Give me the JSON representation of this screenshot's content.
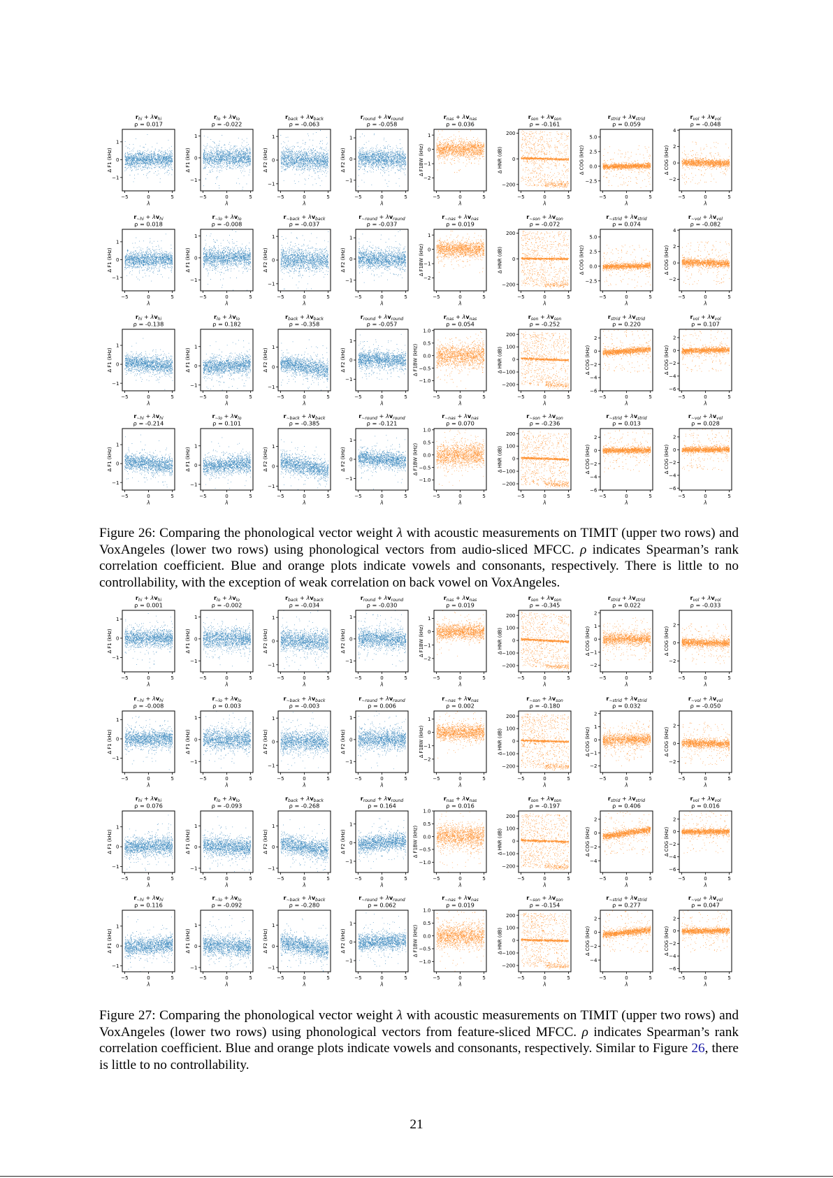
{
  "features": [
    "hi",
    "lo",
    "back",
    "round",
    "nas",
    "son",
    "strid",
    "vol"
  ],
  "colors": {
    "vowel": "#1f77b4",
    "consonant": "#ff7f0e"
  },
  "title_parts": {
    "r": "r",
    "plus": " + ",
    "lambda": "λ",
    "v": "v",
    "rho_prefix": "ρ = "
  },
  "xaxis": {
    "label": "λ",
    "ticks": [
      "−5",
      "0",
      "5"
    ],
    "range": [
      -5.5,
      5.5
    ]
  },
  "figures": [
    {
      "axes": {
        "timit": [
          {
            "ylabel": "Δ F1 (kHz)",
            "yticks": [
              "−1",
              "0",
              "1"
            ],
            "ylim": [
              -1.75,
              1.7
            ]
          },
          {
            "ylabel": "Δ F1 (kHz)",
            "yticks": [
              "−1",
              "0",
              "1"
            ],
            "ylim": [
              -1.5,
              1.3
            ]
          },
          {
            "ylabel": "Δ F2 (kHz)",
            "yticks": [
              "−1",
              "0",
              "1"
            ],
            "ylim": [
              -1.3,
              1.3
            ]
          },
          {
            "ylabel": "Δ F2 (kHz)",
            "yticks": [
              "−1",
              "0",
              "1"
            ],
            "ylim": [
              -1.5,
              1.4
            ]
          },
          {
            "ylabel": "Δ F1BW (kHz)",
            "yticks": [
              "−2",
              "−1",
              "0",
              "1"
            ],
            "ylim": [
              -2.9,
              1.4
            ]
          },
          {
            "ylabel": "Δ HNR (dB)",
            "yticks": [
              "−200",
              "0",
              "200"
            ],
            "ylim": [
              -250,
              230
            ]
          },
          {
            "ylabel": "Δ COG (kHz)",
            "yticks": [
              "−2.5",
              "0.0",
              "2.5",
              "5.0"
            ],
            "ylim": [
              -4.2,
              6.3
            ]
          },
          {
            "ylabel": "Δ COG (kHz)",
            "yticks": [
              "−2",
              "0",
              "2",
              "4"
            ],
            "ylim": [
              -3.4,
              4.1
            ]
          }
        ],
        "vox": [
          {
            "ylabel": "Δ F1 (kHz)",
            "yticks": [
              "−1",
              "0",
              "1"
            ],
            "ylim": [
              -1.4,
              1.85
            ]
          },
          {
            "ylabel": "Δ F1 (kHz)",
            "yticks": [
              "−1",
              "0",
              "1"
            ],
            "ylim": [
              -1.3,
              1.9
            ]
          },
          {
            "ylabel": "Δ F2 (kHz)",
            "yticks": [
              "−1",
              "0",
              "1"
            ],
            "ylim": [
              -1.2,
              1.9
            ]
          },
          {
            "ylabel": "Δ F2 (kHz)",
            "yticks": [
              "−1",
              "0",
              "1"
            ],
            "ylim": [
              -1.6,
              1.6
            ]
          },
          {
            "ylabel": "Δ F1BW (kHz)",
            "yticks": [
              "−1.0",
              "−0.5",
              "0.0",
              "0.5",
              "1.0"
            ],
            "ylim": [
              -1.4,
              1.05
            ]
          },
          {
            "ylabel": "Δ HNR (dB)",
            "yticks": [
              "−200",
              "−100",
              "0",
              "100",
              "200"
            ],
            "ylim": [
              -250,
              240
            ]
          },
          {
            "ylabel": "Δ COG (kHz)",
            "yticks": [
              "−6",
              "−4",
              "−2",
              "0",
              "2"
            ],
            "ylim": [
              -6,
              3.3
            ]
          },
          {
            "ylabel": "Δ COG (kHz)",
            "yticks": [
              "−6",
              "−4",
              "−2",
              "0",
              "2"
            ],
            "ylim": [
              -6.3,
              3.3
            ]
          }
        ]
      },
      "rows": [
        {
          "dataset": "timit",
          "negated_prefix": "",
          "rho": [
            "0.017",
            "-0.022",
            "-0.063",
            "-0.058",
            "0.036",
            "-0.161",
            "0.059",
            "-0.048"
          ]
        },
        {
          "dataset": "timit",
          "negated_prefix": "∼",
          "rho": [
            "0.018",
            "-0.008",
            "-0.037",
            "-0.037",
            "0.019",
            "-0.072",
            "0.074",
            "-0.082"
          ]
        },
        {
          "dataset": "vox",
          "negated_prefix": "",
          "rho": [
            "-0.138",
            "0.182",
            "-0.358",
            "-0.057",
            "0.054",
            "-0.252",
            "0.220",
            "0.107"
          ]
        },
        {
          "dataset": "vox",
          "negated_prefix": "∼",
          "rho": [
            "-0.214",
            "0.101",
            "-0.385",
            "-0.121",
            "0.070",
            "-0.236",
            "0.013",
            "0.028"
          ]
        }
      ],
      "caption": {
        "label": "Figure 26:",
        "parts": [
          "Comparing the phonological vector weight ",
          "λ",
          " with acoustic measurements on TIMIT (upper two rows) and VoxAngeles (lower two rows) using phonological vectors from audio-sliced MFCC. ",
          "ρ",
          " indicates Spearman’s rank correlation coefficient. Blue and orange plots indicate vowels and consonants, respectively. There is little to no controllability, with the exception of weak correlation on back vowel on VoxAngeles.",
          "",
          ""
        ]
      }
    },
    {
      "axes": {
        "timit": [
          {
            "ylabel": "Δ F1 (kHz)",
            "yticks": [
              "−1",
              "0",
              "1"
            ],
            "ylim": [
              -1.75,
              1.45
            ]
          },
          {
            "ylabel": "Δ F1 (kHz)",
            "yticks": [
              "−1",
              "0",
              "1"
            ],
            "ylim": [
              -1.5,
              1.3
            ]
          },
          {
            "ylabel": "Δ F2 (kHz)",
            "yticks": [
              "−1",
              "0",
              "1"
            ],
            "ylim": [
              -1.3,
              1.3
            ]
          },
          {
            "ylabel": "Δ F2 (kHz)",
            "yticks": [
              "−1",
              "0",
              "1"
            ],
            "ylim": [
              -1.5,
              1.3
            ]
          },
          {
            "ylabel": "Δ F1BW (kHz)",
            "yticks": [
              "−2",
              "−1",
              "0",
              "1"
            ],
            "ylim": [
              -3,
              1.6
            ]
          },
          {
            "ylabel": "Δ HNR (dB)",
            "yticks": [
              "−200",
              "−100",
              "0",
              "100",
              "200"
            ],
            "ylim": [
              -250,
              240
            ]
          },
          {
            "ylabel": "Δ COG (kHz)",
            "yticks": [
              "−2",
              "−1",
              "0",
              "1",
              "2"
            ],
            "ylim": [
              -2.5,
              2.2
            ]
          },
          {
            "ylabel": "Δ COG (kHz)",
            "yticks": [
              "−2",
              "0",
              "2"
            ],
            "ylim": [
              -3.2,
              3.6
            ]
          }
        ],
        "vox": [
          {
            "ylabel": "Δ F1 (kHz)",
            "yticks": [
              "−1",
              "0",
              "1"
            ],
            "ylim": [
              -1.3,
              1.8
            ]
          },
          {
            "ylabel": "Δ F1 (kHz)",
            "yticks": [
              "−1",
              "0",
              "1"
            ],
            "ylim": [
              -1.2,
              1.7
            ]
          },
          {
            "ylabel": "Δ F2 (kHz)",
            "yticks": [
              "−1",
              "0",
              "1"
            ],
            "ylim": [
              -1.2,
              1.7
            ]
          },
          {
            "ylabel": "Δ F2 (kHz)",
            "yticks": [
              "−1",
              "0",
              "1"
            ],
            "ylim": [
              -1.6,
              1.7
            ]
          },
          {
            "ylabel": "Δ F1BW (kHz)",
            "yticks": [
              "−1.0",
              "−0.5",
              "0.0",
              "0.5",
              "1.0"
            ],
            "ylim": [
              -1.4,
              1.0
            ]
          },
          {
            "ylabel": "Δ HNR (dB)",
            "yticks": [
              "−200",
              "−100",
              "0",
              "100",
              "200"
            ],
            "ylim": [
              -250,
              240
            ]
          },
          {
            "ylabel": "Δ COG (kHz)",
            "yticks": [
              "−4",
              "−2",
              "0",
              "2"
            ],
            "ylim": [
              -5.7,
              3.2
            ]
          },
          {
            "ylabel": "Δ COG (kHz)",
            "yticks": [
              "−6",
              "−4",
              "−2",
              "0",
              "2"
            ],
            "ylim": [
              -6.5,
              3.3
            ]
          }
        ]
      },
      "rows": [
        {
          "dataset": "timit",
          "negated_prefix": "",
          "rho": [
            "0.001",
            "-0.002",
            "-0.034",
            "-0.030",
            "0.019",
            "-0.345",
            "0.022",
            "-0.033"
          ]
        },
        {
          "dataset": "timit",
          "negated_prefix": "∼",
          "rho": [
            "-0.008",
            "0.003",
            "-0.003",
            "0.006",
            "0.002",
            "-0.180",
            "0.032",
            "-0.050"
          ]
        },
        {
          "dataset": "vox",
          "negated_prefix": "",
          "rho": [
            "0.076",
            "-0.093",
            "-0.268",
            "0.164",
            "0.016",
            "-0.197",
            "0.406",
            "0.016"
          ]
        },
        {
          "dataset": "vox",
          "negated_prefix": "∼",
          "rho": [
            "0.116",
            "-0.092",
            "-0.280",
            "0.062",
            "0.019",
            "-0.154",
            "0.277",
            "0.047"
          ]
        }
      ],
      "caption": {
        "label": "Figure 27:",
        "parts": [
          "Comparing the phonological vector weight ",
          "λ",
          " with acoustic measurements on TIMIT (upper two rows) and VoxAngeles (lower two rows) using phonological vectors from feature-sliced MFCC. ",
          "ρ",
          " indicates Spearman’s rank correlation coefficient. Blue and orange plots indicate vowels and consonants, respectively. Similar to Figure ",
          "26",
          ", there is little to no controllability."
        ]
      }
    }
  ],
  "page_number": "21"
}
